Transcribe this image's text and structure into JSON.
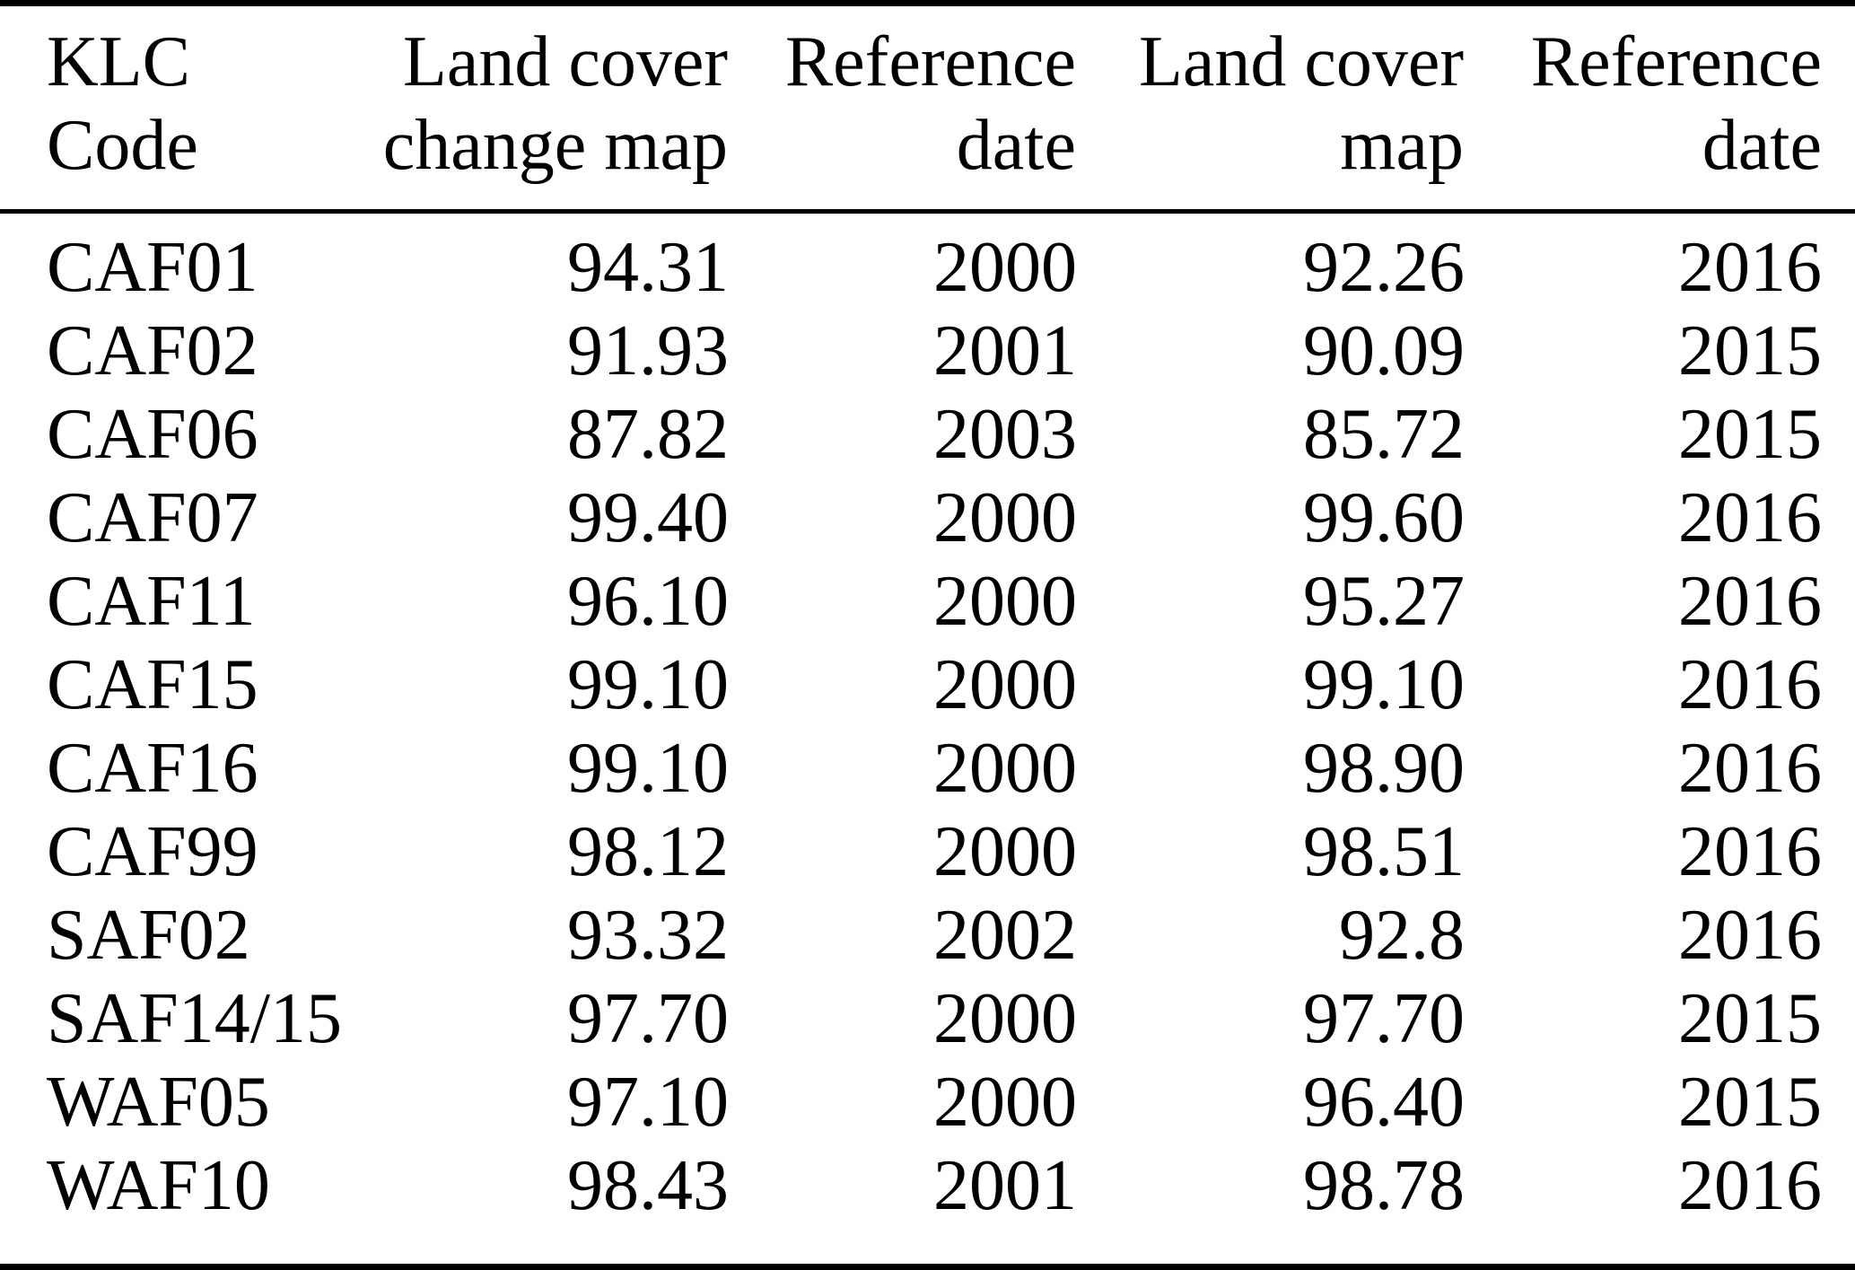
{
  "table": {
    "columns": [
      {
        "id": "klc-code",
        "label_line1": "KLC",
        "label_line2": "Code",
        "align": "left"
      },
      {
        "id": "land-cover-change-map",
        "label_line1": "Land cover",
        "label_line2": "change map",
        "align": "right"
      },
      {
        "id": "reference-date-1",
        "label_line1": "Reference",
        "label_line2": "date",
        "align": "right"
      },
      {
        "id": "land-cover-map",
        "label_line1": "Land cover",
        "label_line2": "map",
        "align": "right"
      },
      {
        "id": "reference-date-2",
        "label_line1": "Reference",
        "label_line2": "date",
        "align": "right"
      }
    ],
    "rows": [
      [
        "CAF01",
        "94.31",
        "2000",
        "92.26",
        "2016"
      ],
      [
        "CAF02",
        "91.93",
        "2001",
        "90.09",
        "2015"
      ],
      [
        "CAF06",
        "87.82",
        "2003",
        "85.72",
        "2015"
      ],
      [
        "CAF07",
        "99.40",
        "2000",
        "99.60",
        "2016"
      ],
      [
        "CAF11",
        "96.10",
        "2000",
        "95.27",
        "2016"
      ],
      [
        "CAF15",
        "99.10",
        "2000",
        "99.10",
        "2016"
      ],
      [
        "CAF16",
        "99.10",
        "2000",
        "98.90",
        "2016"
      ],
      [
        "CAF99",
        "98.12",
        "2000",
        "98.51",
        "2016"
      ],
      [
        "SAF02",
        "93.32",
        "2002",
        "92.8",
        "2016"
      ],
      [
        "SAF14/15",
        "97.70",
        "2000",
        "97.70",
        "2015"
      ],
      [
        "WAF05",
        "97.10",
        "2000",
        "96.40",
        "2015"
      ],
      [
        "WAF10",
        "98.43",
        "2001",
        "98.78",
        "2016"
      ]
    ]
  },
  "colors": {
    "text": "#000000",
    "background": "#ffffff",
    "rule": "#000000"
  }
}
